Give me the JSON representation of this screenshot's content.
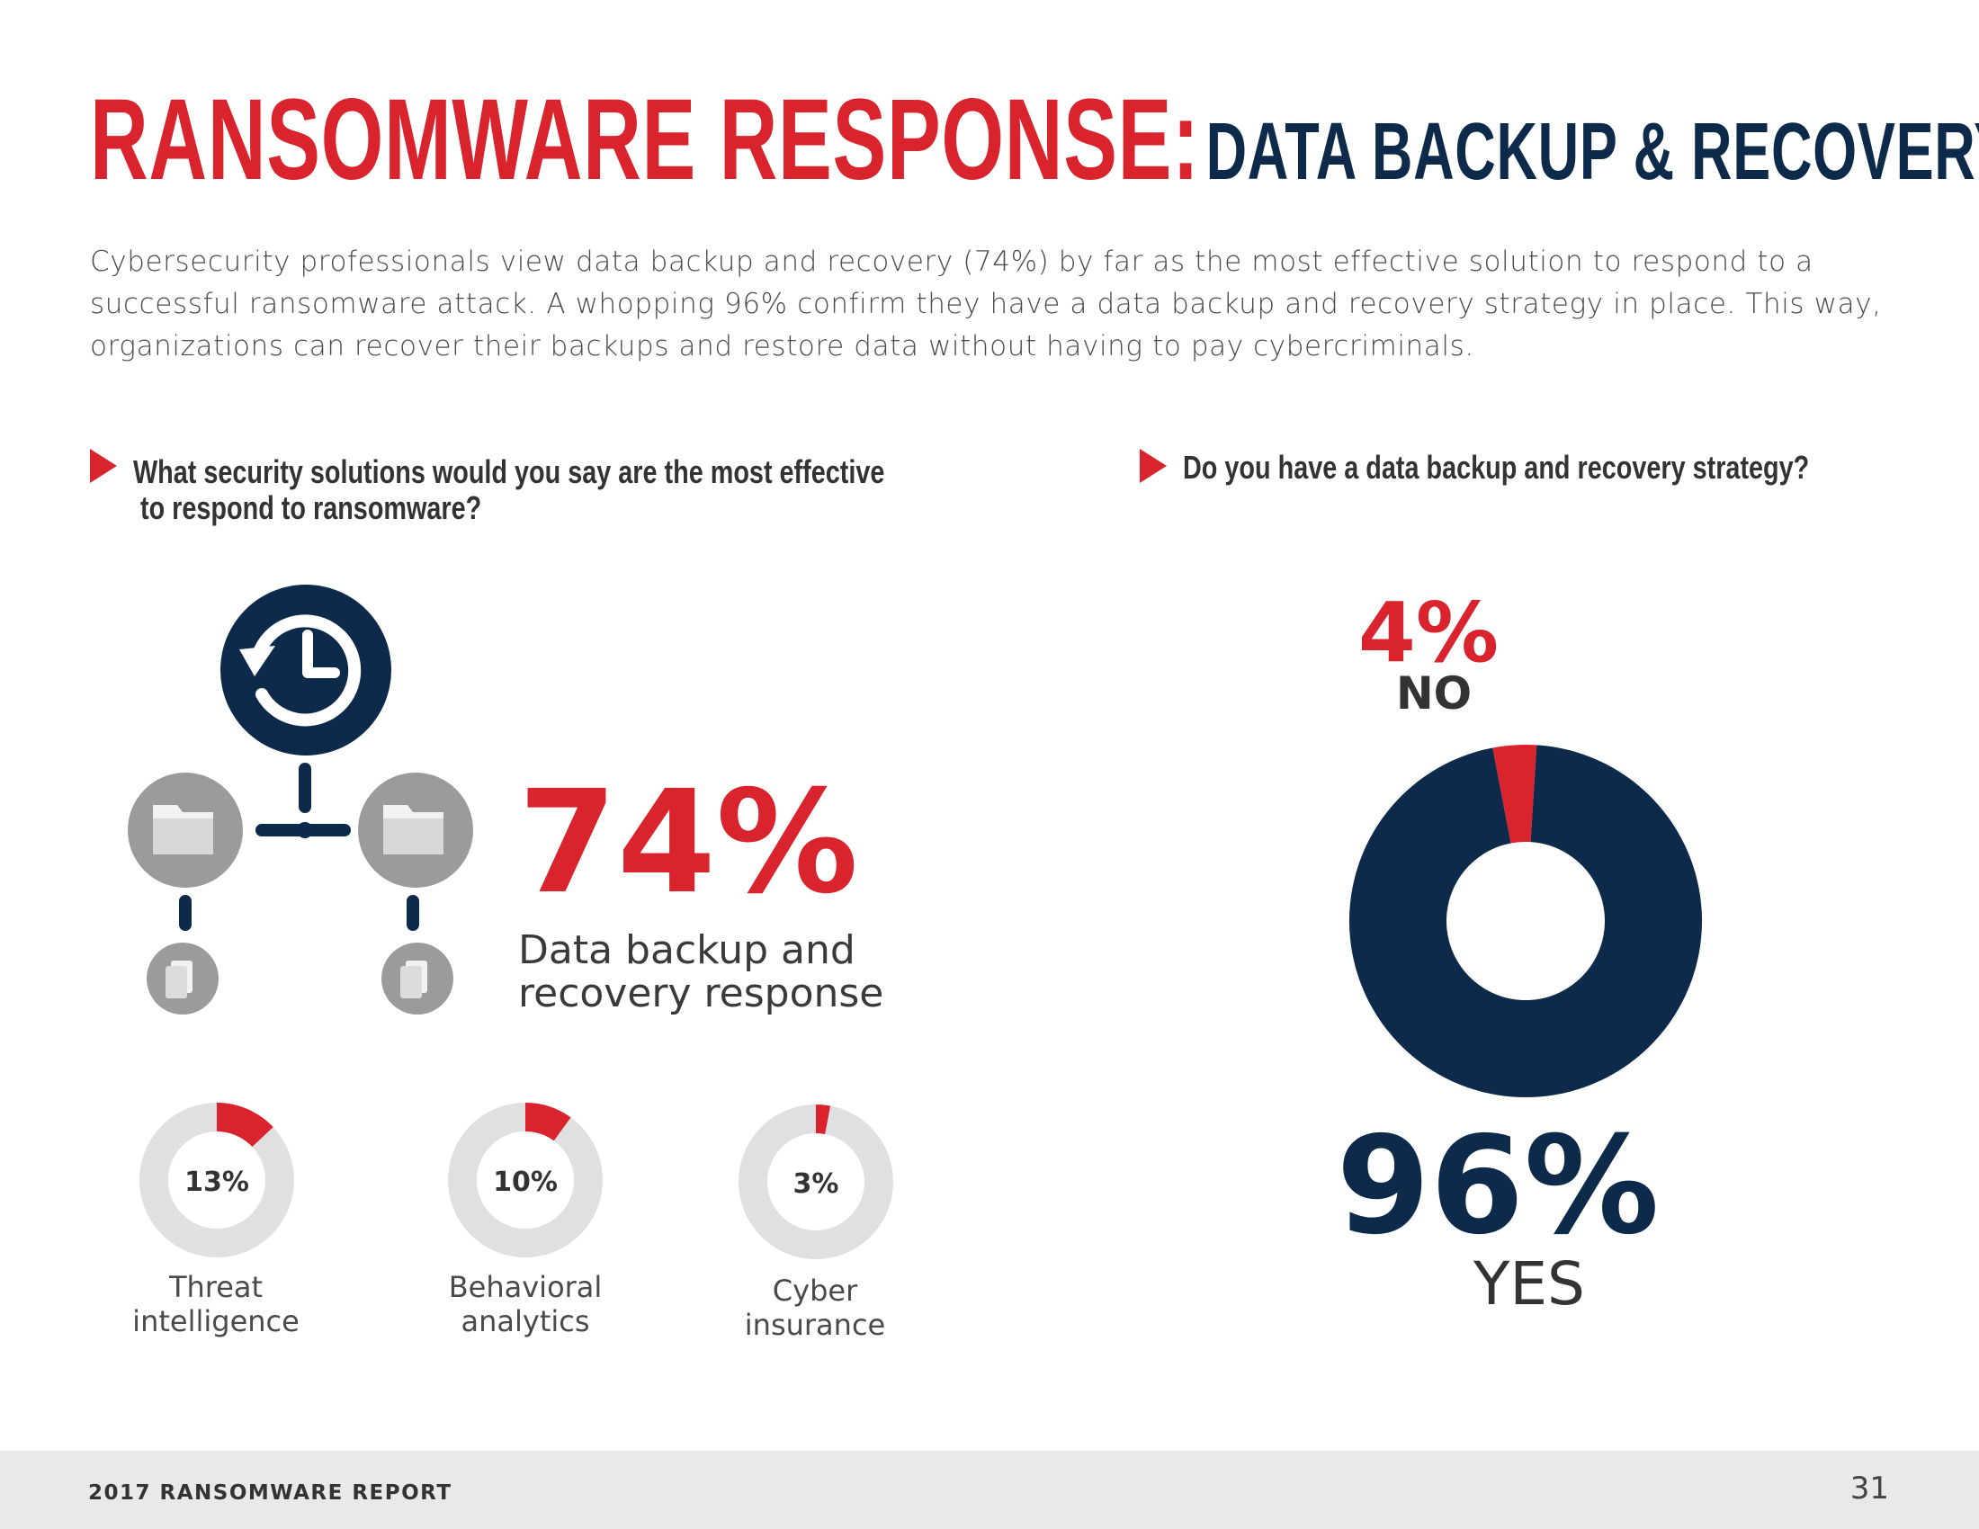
{
  "header": {
    "title_main": "RANSOMWARE RESPONSE:",
    "title_sub": "DATA BACKUP & RECOVERY",
    "intro": "Cybersecurity professionals view data backup and recovery (74%) by far as the most effective solution to respond to a successful ransomware attack. A whopping 96% confirm they have a data backup and recovery strategy in place. This way, organizations can recover their backups and restore data without having to pay cybercriminals."
  },
  "left": {
    "question": "What security solutions would you say are the most effective\n to respond to ransomware?",
    "headline_value": "74%",
    "headline_label": "Data backup and\nrecovery response",
    "icons": [
      "backup-clock-icon",
      "folder-icon",
      "folder-icon",
      "document-icon",
      "document-icon"
    ]
  },
  "right": {
    "question": "Do you have a data backup and recovery strategy?"
  },
  "chart_data": [
    {
      "type": "pie",
      "categories": [
        "Data backup and recovery response",
        "Threat intelligence",
        "Behavioral analytics",
        "Cyber insurance"
      ],
      "values": [
        74,
        13,
        10,
        3
      ],
      "labels": [
        "74%",
        "13%",
        "10%",
        "3%"
      ],
      "display": [
        "Data backup and\nrecovery response",
        "Threat\nintelligence",
        "Behavioral\nanalytics",
        "Cyber\ninsurance"
      ]
    },
    {
      "type": "pie",
      "categories": [
        "NO",
        "YES"
      ],
      "values": [
        4,
        96
      ],
      "labels": [
        "4%",
        "96%"
      ],
      "colors": [
        "#d9232d",
        "#0d2a4b"
      ]
    }
  ],
  "colors": {
    "accent_red": "#d9232d",
    "navy": "#0d2a4b",
    "track_gray": "#e0e0e2",
    "icon_gray": "#9b9b9b"
  },
  "footer": {
    "report_name": "2017 RANSOMWARE REPORT",
    "page_number": "31"
  }
}
